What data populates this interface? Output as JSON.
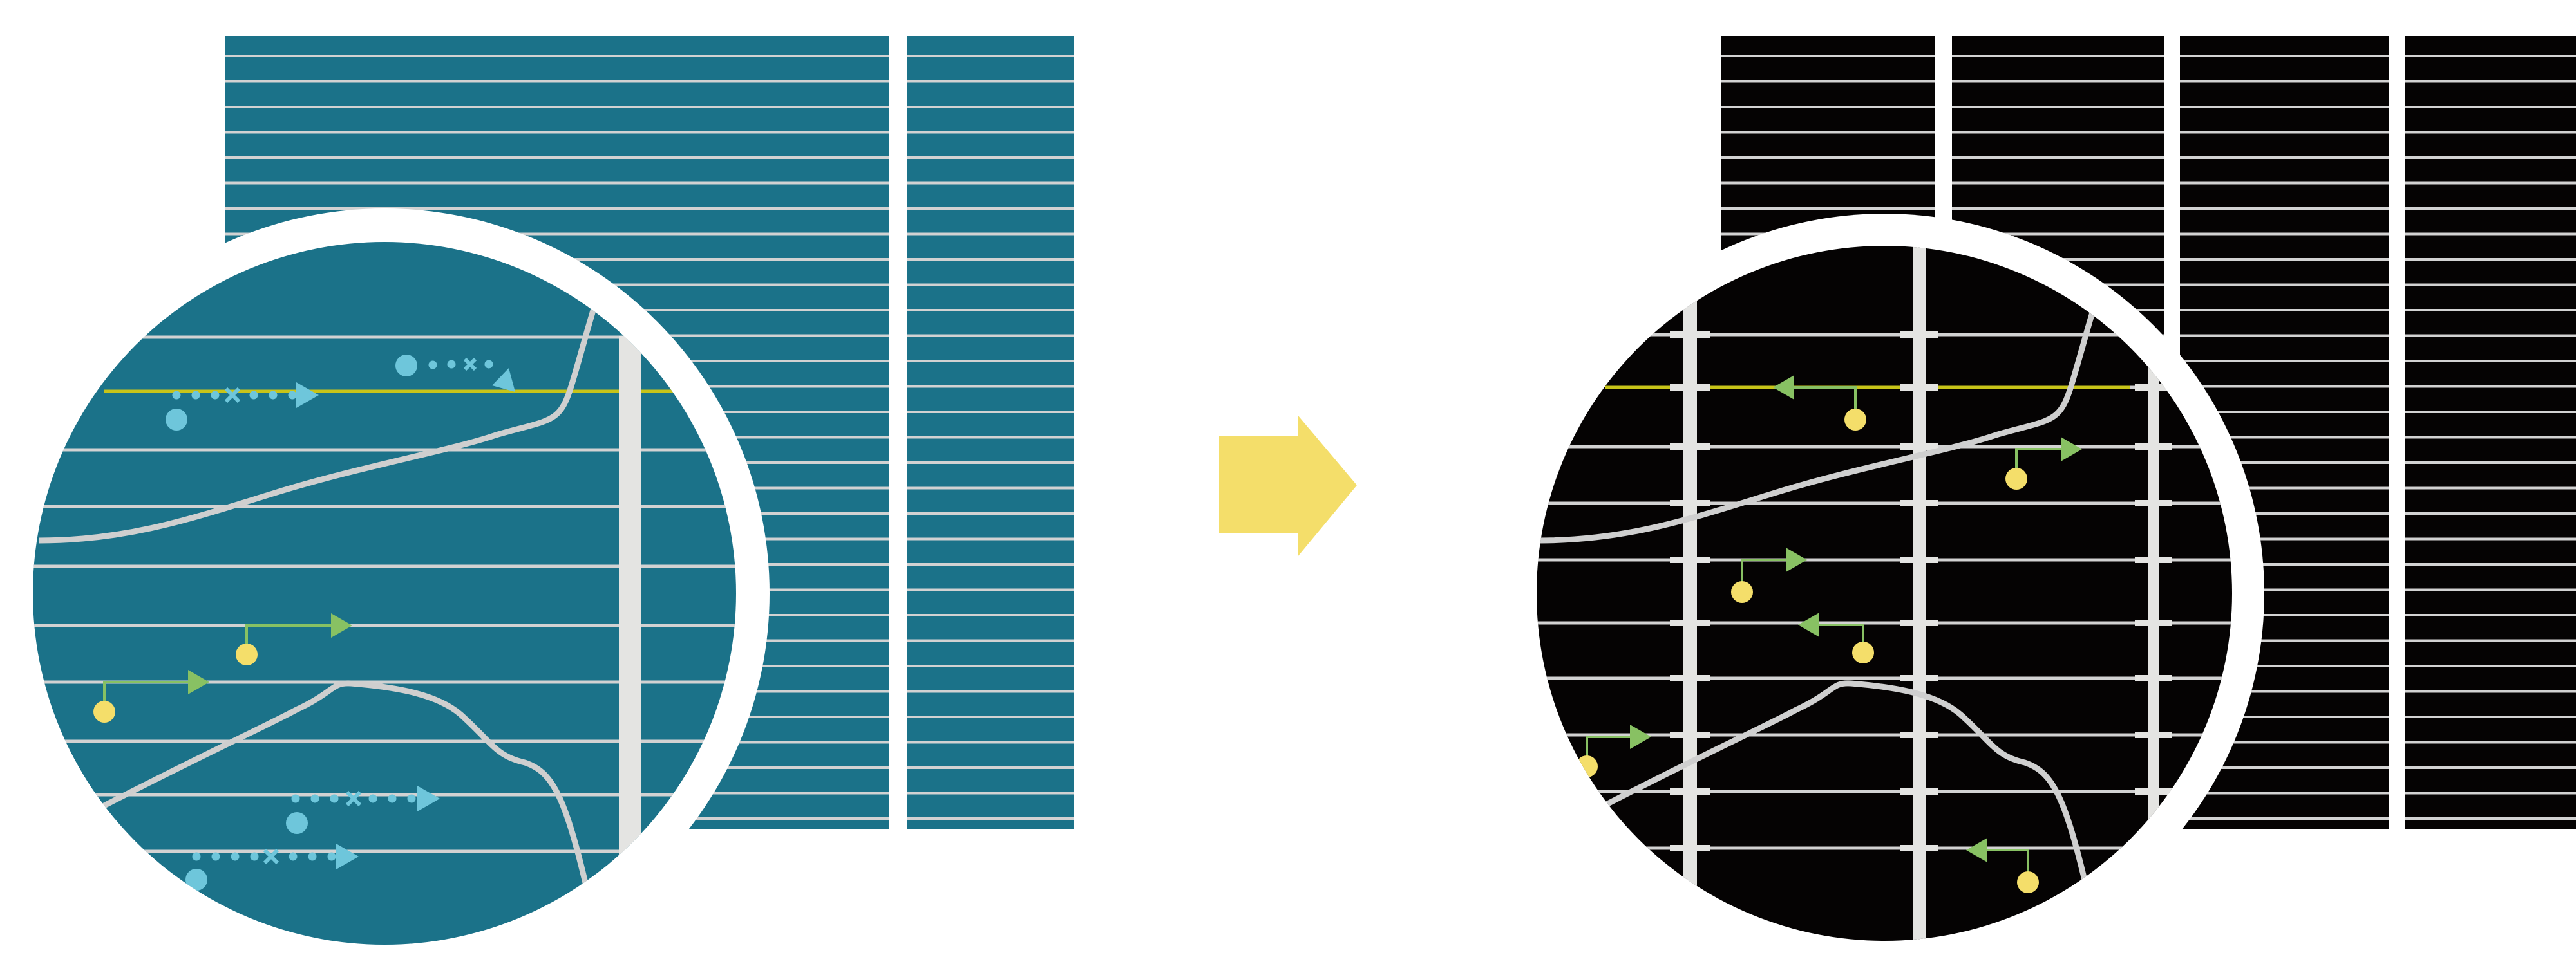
{
  "colors": {
    "background": "#ffffff",
    "before_panel": "#1b7289",
    "after_panel": "#050303",
    "grid_line": "#d2d2d2",
    "highlight_line": "#c8c419",
    "ring": "#ffffff",
    "vertical_bar": "#e4e4e2",
    "curve": "#cfcfcf",
    "blue_marker": "#6ec6db",
    "green_arrow": "#88c163",
    "yellow_dot": "#f4de6a",
    "transition_arrow": "#f4de6a"
  },
  "icons": {
    "transition": "right-arrow-icon",
    "before_markers": "dotted-trajectory-icon",
    "after_markers": "pin-arrow-icon"
  }
}
